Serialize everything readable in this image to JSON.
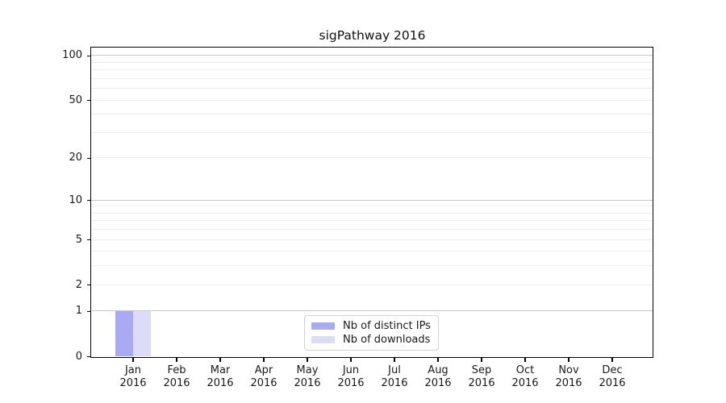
{
  "title": "sigPathway 2016",
  "chart_data": {
    "type": "bar",
    "title": "sigPathway 2016",
    "categories": [
      "Jan",
      "Feb",
      "Mar",
      "Apr",
      "May",
      "Jun",
      "Jul",
      "Aug",
      "Sep",
      "Oct",
      "Nov",
      "Dec"
    ],
    "year": "2016",
    "series": [
      {
        "name": "Nb of distinct IPs",
        "color": "#aaaaf4",
        "values": [
          1,
          0,
          0,
          0,
          0,
          0,
          0,
          0,
          0,
          0,
          0,
          0
        ]
      },
      {
        "name": "Nb of downloads",
        "color": "#dcdcf8",
        "values": [
          1,
          0,
          0,
          0,
          0,
          0,
          0,
          0,
          0,
          0,
          0,
          0
        ]
      }
    ],
    "xlabel": "",
    "ylabel": "",
    "yscale": "log1p",
    "ylim": [
      0,
      113
    ],
    "yticks": [
      0,
      1,
      2,
      5,
      10,
      20,
      50,
      100
    ],
    "major_gridlines": [
      1,
      10,
      100
    ],
    "minor_gridlines": [
      2,
      3,
      4,
      5,
      6,
      7,
      8,
      9,
      20,
      30,
      40,
      50,
      60,
      70,
      80,
      90
    ],
    "grid": true,
    "legend_position": "bottom-center"
  },
  "colors": {
    "bar_distinct_ips": "#aaaaf4",
    "bar_downloads": "#dcdcf8",
    "major_grid": "#c6c6c6",
    "minor_grid": "#ededed",
    "axis": "#000000",
    "text": "#1a1a1a",
    "background": "#ffffff"
  }
}
